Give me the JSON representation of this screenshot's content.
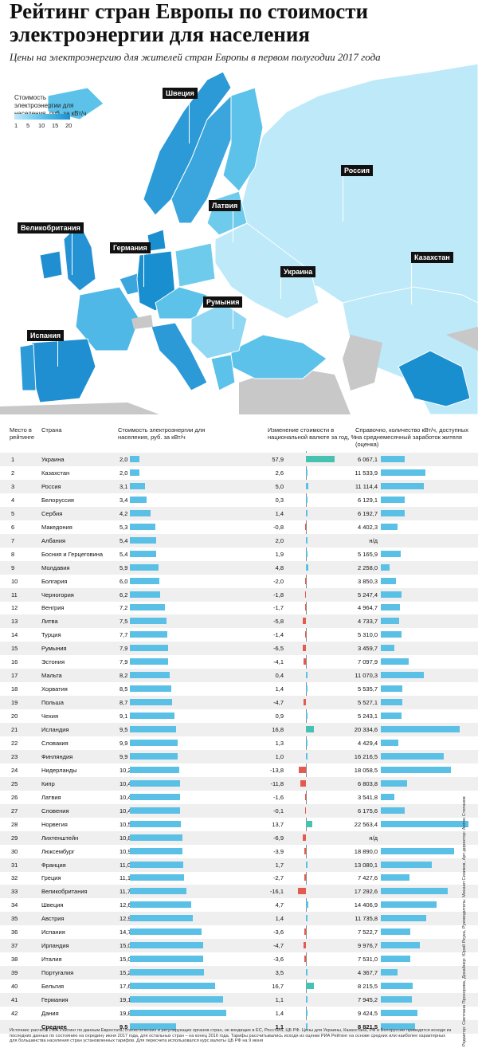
{
  "title": "Рейтинг стран Европы по стоимости электроэнергии для населения",
  "subtitle": "Цены на электроэнергию для жителей стран Европы в первом полугодии 2017 года",
  "legend": {
    "title": "Стоимость электроэнергии для населения, руб. за кВт/ч",
    "ticks": [
      "1",
      "5",
      "10",
      "15",
      "20"
    ]
  },
  "map_labels": [
    "Швеция",
    "Россия",
    "Латвия",
    "Великобритания",
    "Германия",
    "Украина",
    "Казахстан",
    "Румыния",
    "Испания"
  ],
  "colors": {
    "light": "#bde9f8",
    "mid": "#5cc2ea",
    "dark": "#1a8fd0",
    "gray": "#c8c8c8",
    "bar": "#5bc0e6",
    "pos": "#47c1b0",
    "neg": "#e35a4f"
  },
  "table_headers": {
    "rank": "Место в рейтинге",
    "country": "Страна",
    "price": "Стоимость электроэнергии для населения, руб. за кВт/ч",
    "change": "Изменение стоимости в национальной валюте за год, %",
    "kwh": "Справочно, количество кВт/ч, доступных на среднемесячный заработок жителя (оценка)"
  },
  "chart_data": {
    "type": "table",
    "columns": [
      "rank",
      "country",
      "price",
      "change",
      "kwh"
    ],
    "rows": [
      {
        "rank": "1",
        "country": "Украина",
        "price": "2,0",
        "price_v": 2.0,
        "change": "57,9",
        "change_v": 57.9,
        "kwh": "6 067,1",
        "kwh_v": 6067.1
      },
      {
        "rank": "2",
        "country": "Казахстан",
        "price": "2,0",
        "price_v": 2.0,
        "change": "2,6",
        "change_v": 2.6,
        "kwh": "11 533,9",
        "kwh_v": 11533.9
      },
      {
        "rank": "3",
        "country": "Россия",
        "price": "3,1",
        "price_v": 3.1,
        "change": "5,0",
        "change_v": 5.0,
        "kwh": "11 114,4",
        "kwh_v": 11114.4
      },
      {
        "rank": "4",
        "country": "Белоруссия",
        "price": "3,4",
        "price_v": 3.4,
        "change": "0,3",
        "change_v": 0.3,
        "kwh": "6 129,1",
        "kwh_v": 6129.1
      },
      {
        "rank": "5",
        "country": "Сербия",
        "price": "4,2",
        "price_v": 4.2,
        "change": "1,4",
        "change_v": 1.4,
        "kwh": "6 192,7",
        "kwh_v": 6192.7
      },
      {
        "rank": "6",
        "country": "Македония",
        "price": "5,3",
        "price_v": 5.3,
        "change": "-0,8",
        "change_v": -0.8,
        "kwh": "4 402,3",
        "kwh_v": 4402.3
      },
      {
        "rank": "7",
        "country": "Албания",
        "price": "5,4",
        "price_v": 5.4,
        "change": "2,0",
        "change_v": 2.0,
        "kwh": "н/д",
        "kwh_v": 0
      },
      {
        "rank": "8",
        "country": "Босния и Герцеговина",
        "price": "5,4",
        "price_v": 5.4,
        "change": "1,9",
        "change_v": 1.9,
        "kwh": "5 165,9",
        "kwh_v": 5165.9
      },
      {
        "rank": "9",
        "country": "Молдавия",
        "price": "5,9",
        "price_v": 5.9,
        "change": "4,8",
        "change_v": 4.8,
        "kwh": "2 258,0",
        "kwh_v": 2258.0
      },
      {
        "rank": "10",
        "country": "Болгария",
        "price": "6,0",
        "price_v": 6.0,
        "change": "-2,0",
        "change_v": -2.0,
        "kwh": "3 850,3",
        "kwh_v": 3850.3
      },
      {
        "rank": "11",
        "country": "Черногория",
        "price": "6,2",
        "price_v": 6.2,
        "change": "-1,8",
        "change_v": -1.8,
        "kwh": "5 247,4",
        "kwh_v": 5247.4
      },
      {
        "rank": "12",
        "country": "Венгрия",
        "price": "7,2",
        "price_v": 7.2,
        "change": "-1,7",
        "change_v": -1.7,
        "kwh": "4 964,7",
        "kwh_v": 4964.7
      },
      {
        "rank": "13",
        "country": "Литва",
        "price": "7,5",
        "price_v": 7.5,
        "change": "-5,8",
        "change_v": -5.8,
        "kwh": "4 733,7",
        "kwh_v": 4733.7
      },
      {
        "rank": "14",
        "country": "Турция",
        "price": "7,7",
        "price_v": 7.7,
        "change": "-1,4",
        "change_v": -1.4,
        "kwh": "5 310,0",
        "kwh_v": 5310.0
      },
      {
        "rank": "15",
        "country": "Румыния",
        "price": "7,9",
        "price_v": 7.9,
        "change": "-6,5",
        "change_v": -6.5,
        "kwh": "3 459,7",
        "kwh_v": 3459.7
      },
      {
        "rank": "16",
        "country": "Эстония",
        "price": "7,9",
        "price_v": 7.9,
        "change": "-4,1",
        "change_v": -4.1,
        "kwh": "7 097,9",
        "kwh_v": 7097.9
      },
      {
        "rank": "17",
        "country": "Мальта",
        "price": "8,2",
        "price_v": 8.2,
        "change": "0,4",
        "change_v": 0.4,
        "kwh": "11 070,3",
        "kwh_v": 11070.3
      },
      {
        "rank": "18",
        "country": "Хорватия",
        "price": "8,5",
        "price_v": 8.5,
        "change": "1,4",
        "change_v": 1.4,
        "kwh": "5 535,7",
        "kwh_v": 5535.7
      },
      {
        "rank": "19",
        "country": "Польша",
        "price": "8,7",
        "price_v": 8.7,
        "change": "-4,7",
        "change_v": -4.7,
        "kwh": "5 527,1",
        "kwh_v": 5527.1
      },
      {
        "rank": "20",
        "country": "Чехия",
        "price": "9,1",
        "price_v": 9.1,
        "change": "0,9",
        "change_v": 0.9,
        "kwh": "5 243,1",
        "kwh_v": 5243.1
      },
      {
        "rank": "21",
        "country": "Исландия",
        "price": "9,5",
        "price_v": 9.5,
        "change": "16,8",
        "change_v": 16.8,
        "kwh": "20 334,6",
        "kwh_v": 20334.6
      },
      {
        "rank": "22",
        "country": "Словакия",
        "price": "9,9",
        "price_v": 9.9,
        "change": "1,3",
        "change_v": 1.3,
        "kwh": "4 429,4",
        "kwh_v": 4429.4
      },
      {
        "rank": "23",
        "country": "Финляндия",
        "price": "9,9",
        "price_v": 9.9,
        "change": "1,0",
        "change_v": 1.0,
        "kwh": "16 216,5",
        "kwh_v": 16216.5
      },
      {
        "rank": "24",
        "country": "Нидерланды",
        "price": "10,2",
        "price_v": 10.2,
        "change": "-13,8",
        "change_v": -13.8,
        "kwh": "18 058,5",
        "kwh_v": 18058.5
      },
      {
        "rank": "25",
        "country": "Кипр",
        "price": "10,4",
        "price_v": 10.4,
        "change": "-11,8",
        "change_v": -11.8,
        "kwh": "6 803,8",
        "kwh_v": 6803.8
      },
      {
        "rank": "26",
        "country": "Латвия",
        "price": "10,4",
        "price_v": 10.4,
        "change": "-1,6",
        "change_v": -1.6,
        "kwh": "3 541,8",
        "kwh_v": 3541.8
      },
      {
        "rank": "27",
        "country": "Словения",
        "price": "10,4",
        "price_v": 10.4,
        "change": "-0,1",
        "change_v": -0.1,
        "kwh": "6 175,6",
        "kwh_v": 6175.6
      },
      {
        "rank": "28",
        "country": "Норвегия",
        "price": "10,5",
        "price_v": 10.5,
        "change": "13,7",
        "change_v": 13.7,
        "kwh": "22 563,4",
        "kwh_v": 22563.4
      },
      {
        "rank": "29",
        "country": "Лихтенштейн",
        "price": "10,8",
        "price_v": 10.8,
        "change": "-6,9",
        "change_v": -6.9,
        "kwh": "н/д",
        "kwh_v": 0
      },
      {
        "rank": "30",
        "country": "Люксембург",
        "price": "10,9",
        "price_v": 10.9,
        "change": "-3,9",
        "change_v": -3.9,
        "kwh": "18 890,0",
        "kwh_v": 18890.0
      },
      {
        "rank": "31",
        "country": "Франция",
        "price": "11,0",
        "price_v": 11.0,
        "change": "1,7",
        "change_v": 1.7,
        "kwh": "13 080,1",
        "kwh_v": 13080.1
      },
      {
        "rank": "32",
        "country": "Греция",
        "price": "11,1",
        "price_v": 11.1,
        "change": "-2,7",
        "change_v": -2.7,
        "kwh": "7 427,6",
        "kwh_v": 7427.6
      },
      {
        "rank": "33",
        "country": "Великобритания",
        "price": "11,7",
        "price_v": 11.7,
        "change": "-16,1",
        "change_v": -16.1,
        "kwh": "17 292,6",
        "kwh_v": 17292.6
      },
      {
        "rank": "34",
        "country": "Швеция",
        "price": "12,6",
        "price_v": 12.6,
        "change": "4,7",
        "change_v": 4.7,
        "kwh": "14 406,9",
        "kwh_v": 14406.9
      },
      {
        "rank": "35",
        "country": "Австрия",
        "price": "12,9",
        "price_v": 12.9,
        "change": "1,4",
        "change_v": 1.4,
        "kwh": "11 735,8",
        "kwh_v": 11735.8
      },
      {
        "rank": "36",
        "country": "Испания",
        "price": "14,7",
        "price_v": 14.7,
        "change": "-3,6",
        "change_v": -3.6,
        "kwh": "7 522,7",
        "kwh_v": 7522.7
      },
      {
        "rank": "37",
        "country": "Ирландия",
        "price": "15,0",
        "price_v": 15.0,
        "change": "-4,7",
        "change_v": -4.7,
        "kwh": "9 976,7",
        "kwh_v": 9976.7
      },
      {
        "rank": "38",
        "country": "Италия",
        "price": "15,0",
        "price_v": 15.0,
        "change": "-3,6",
        "change_v": -3.6,
        "kwh": "7 531,0",
        "kwh_v": 7531.0
      },
      {
        "rank": "39",
        "country": "Португалия",
        "price": "15,2",
        "price_v": 15.2,
        "change": "3,5",
        "change_v": 3.5,
        "kwh": "4 367,7",
        "kwh_v": 4367.7
      },
      {
        "rank": "40",
        "country": "Бельгия",
        "price": "17,6",
        "price_v": 17.6,
        "change": "16,7",
        "change_v": 16.7,
        "kwh": "8 215,5",
        "kwh_v": 8215.5
      },
      {
        "rank": "41",
        "country": "Германия",
        "price": "19,1",
        "price_v": 19.1,
        "change": "1,1",
        "change_v": 1.1,
        "kwh": "7 945,2",
        "kwh_v": 7945.2
      },
      {
        "rank": "42",
        "country": "Дания",
        "price": "19,8",
        "price_v": 19.8,
        "change": "1,4",
        "change_v": 1.4,
        "kwh": "9 424,5",
        "kwh_v": 9424.5
      },
      {
        "rank": "",
        "country": "Среднее",
        "price": "9,5",
        "price_v": 9.5,
        "change": "1,1",
        "change_v": 1.1,
        "kwh": "8 821,5",
        "kwh_v": 8821.5
      }
    ]
  },
  "footer": "Источник: расчеты РИА Рейтинг по данным Евростата, статистических и регулирующих органов стран, не входящих в ЕС, Росстата, ЦБ РФ. Цены для Украины, Казахстана, РФ и Белоруссии приводятся исходя из последних данных по состоянию на середину июня 2017 года, для остальных стран – на конец 2016 года. Тарифы рассчитывались исходя из оценки РИА Рейтинг на основе средних или наиболее характерных для большинства населения стран установленных тарифов. Для пересчета использовался курс валюты ЦБ РФ на 9 июня",
  "credits": "Редактор: Светлана Прохорова, Дизайнер: Юрий Реука, Руководитель: Михаил Сиников, Арт-директор: Антон Степанов"
}
